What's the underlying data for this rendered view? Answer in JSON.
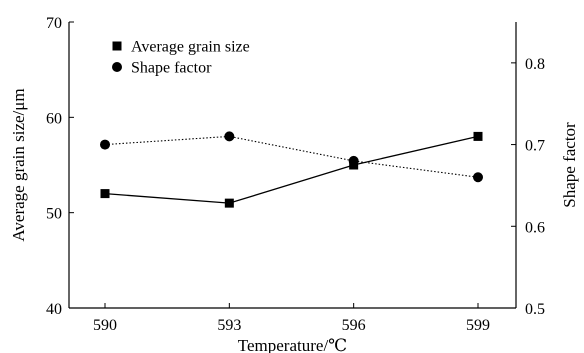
{
  "chart_data": {
    "type": "line",
    "xlabel": "Temperature/℃",
    "categories": [
      "590",
      "593",
      "596",
      "599"
    ],
    "x": [
      590,
      593,
      596,
      599
    ],
    "y_left": {
      "label": "Average grain size/μm",
      "ylim": [
        40,
        70
      ],
      "ticks": [
        "40",
        "50",
        "60",
        "70"
      ]
    },
    "y_right": {
      "label": "Shape factor",
      "ylim": [
        0.5,
        0.85
      ],
      "ticks": [
        "0.5",
        "0.6",
        "0.7",
        "0.8"
      ]
    },
    "series": [
      {
        "name": "Average grain size",
        "axis": "left",
        "marker": "square",
        "line_style": "solid",
        "values": [
          52.0,
          51.0,
          55.0,
          58.0
        ]
      },
      {
        "name": "Shape factor",
        "axis": "right",
        "marker": "circle",
        "line_style": "dotted",
        "values": [
          0.7,
          0.71,
          0.68,
          0.66
        ]
      }
    ],
    "legend_position": "top-left",
    "grid": false
  }
}
